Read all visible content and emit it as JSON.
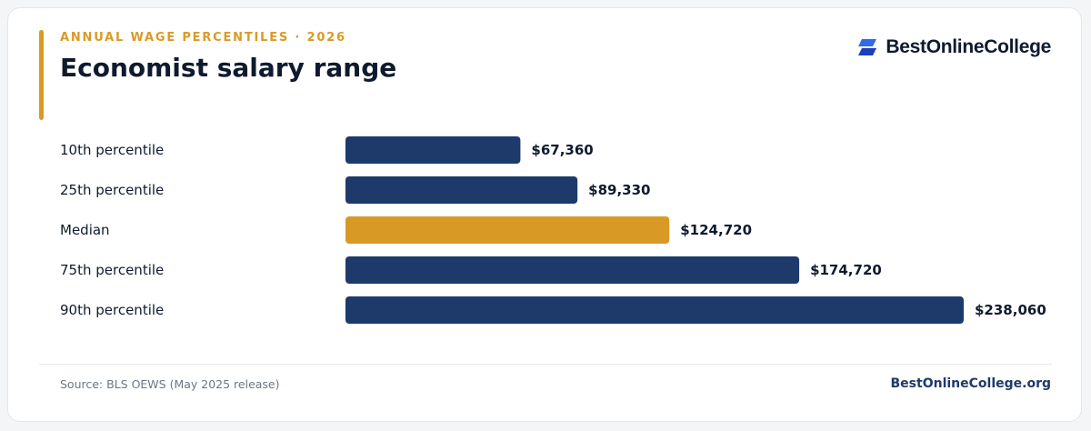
{
  "header": {
    "eyebrow": "ANNUAL WAGE PERCENTILES · 2026",
    "title": "Economist salary range",
    "brand_name": "BestOnlineCollege",
    "brand_icon": "brand-logo-icon"
  },
  "colors": {
    "accent": "#d99a25",
    "bar": "#1e3a6b",
    "highlight": "#d99a25",
    "text": "#0f1a2e"
  },
  "chart_data": {
    "type": "bar",
    "orientation": "horizontal",
    "categories": [
      "10th percentile",
      "25th percentile",
      "Median",
      "75th percentile",
      "90th percentile"
    ],
    "values": [
      67360,
      89330,
      124720,
      174720,
      238060
    ],
    "value_labels": [
      "$67,360",
      "$89,330",
      "$124,720",
      "$174,720",
      "$238,060"
    ],
    "highlight_category": "Median",
    "xlim": [
      0,
      238060
    ],
    "grid": false,
    "legend": "none"
  },
  "footer": {
    "source": "Source: BLS OEWS (May 2025 release)",
    "site": "BestOnlineCollege.org"
  }
}
